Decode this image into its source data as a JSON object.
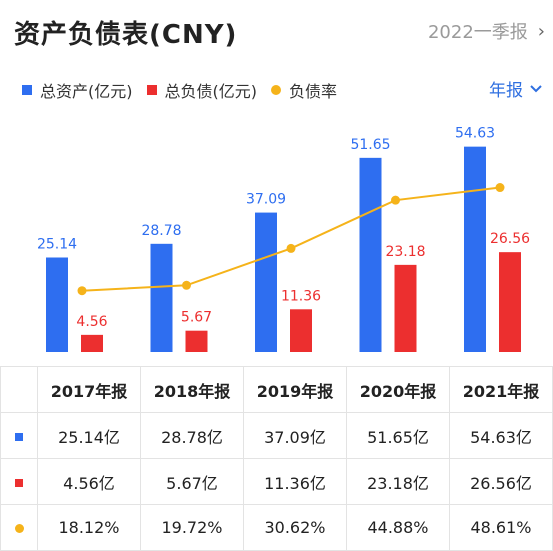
{
  "header": {
    "title": "资产负债表(CNY)",
    "period_label": "2022一季报"
  },
  "legend": [
    {
      "label": "总资产(亿元)",
      "color": "#2e6ef0",
      "shape": "square"
    },
    {
      "label": "总负债(亿元)",
      "color": "#ec2f2f",
      "shape": "square"
    },
    {
      "label": "负债率",
      "color": "#f5b31a",
      "shape": "dot"
    }
  ],
  "period_selector": {
    "label": "年报",
    "icon": "chevron-down-icon"
  },
  "chart_data": {
    "type": "bar",
    "categories": [
      "2017年报",
      "2018年报",
      "2019年报",
      "2020年报",
      "2021年报"
    ],
    "series": [
      {
        "name": "总资产(亿元)",
        "type": "bar",
        "color": "#2e6ef0",
        "values": [
          25.14,
          28.78,
          37.09,
          51.65,
          54.63
        ]
      },
      {
        "name": "总负债(亿元)",
        "type": "bar",
        "color": "#ec2f2f",
        "values": [
          4.56,
          5.67,
          11.36,
          23.18,
          26.56
        ]
      },
      {
        "name": "负债率",
        "type": "line",
        "color": "#f5b31a",
        "values": [
          18.12,
          19.72,
          30.62,
          44.88,
          48.61
        ],
        "unit": "%"
      }
    ],
    "bar_axis_range": [
      0,
      60
    ],
    "line_axis_range": [
      0,
      60
    ],
    "grid": false
  },
  "table": {
    "columns": [
      "2017年报",
      "2018年报",
      "2019年报",
      "2020年报",
      "2021年报"
    ],
    "rows": [
      {
        "marker": "square",
        "color": "#2e6ef0",
        "cells": [
          "25.14亿",
          "28.78亿",
          "37.09亿",
          "51.65亿",
          "54.63亿"
        ]
      },
      {
        "marker": "square",
        "color": "#ec2f2f",
        "cells": [
          "4.56亿",
          "5.67亿",
          "11.36亿",
          "23.18亿",
          "26.56亿"
        ]
      },
      {
        "marker": "dot",
        "color": "#f5b31a",
        "cells": [
          "18.12%",
          "19.72%",
          "30.62%",
          "44.88%",
          "48.61%"
        ]
      }
    ]
  }
}
